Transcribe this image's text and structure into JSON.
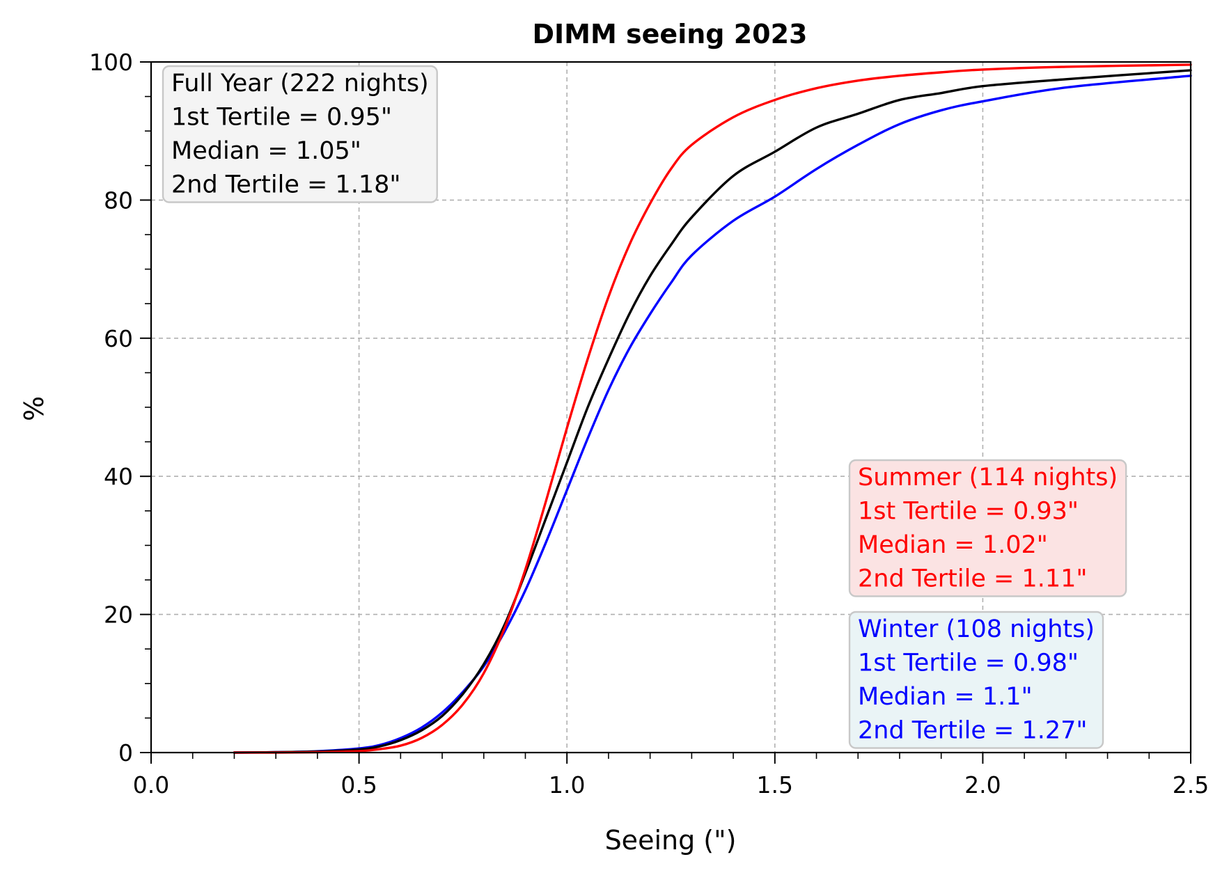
{
  "chart_data": {
    "type": "line",
    "title": "DIMM seeing 2023",
    "xlabel": "Seeing (\")",
    "ylabel": "%",
    "xlim": [
      0.0,
      2.5
    ],
    "ylim": [
      0,
      100
    ],
    "xticks": [
      "0.0",
      "0.5",
      "1.0",
      "1.5",
      "2.0",
      "2.5"
    ],
    "yticks": [
      "0",
      "20",
      "40",
      "60",
      "80",
      "100"
    ],
    "grid": true,
    "series": [
      {
        "color": "#0000ff",
        "x": [
          0.2,
          0.3,
          0.4,
          0.5,
          0.55,
          0.6,
          0.65,
          0.7,
          0.75,
          0.8,
          0.85,
          0.9,
          0.95,
          1.0,
          1.05,
          1.1,
          1.15,
          1.2,
          1.25,
          1.3,
          1.4,
          1.5,
          1.6,
          1.7,
          1.8,
          1.9,
          2.0,
          2.2,
          2.5
        ],
        "y": [
          0.0,
          0.05,
          0.2,
          0.6,
          1.1,
          2.1,
          3.6,
          5.8,
          8.8,
          12.5,
          17.5,
          23.5,
          30.5,
          38.0,
          45.5,
          52.5,
          58.5,
          63.5,
          68.0,
          72.0,
          77.0,
          80.5,
          84.5,
          88.0,
          91.0,
          93.0,
          94.3,
          96.3,
          98.0
        ]
      },
      {
        "color": "#000000",
        "x": [
          0.2,
          0.3,
          0.4,
          0.5,
          0.55,
          0.6,
          0.65,
          0.7,
          0.75,
          0.8,
          0.85,
          0.9,
          0.95,
          1.0,
          1.05,
          1.1,
          1.15,
          1.2,
          1.25,
          1.3,
          1.4,
          1.5,
          1.6,
          1.7,
          1.8,
          1.9,
          2.0,
          2.2,
          2.5
        ],
        "y": [
          0.0,
          0.05,
          0.15,
          0.45,
          0.9,
          1.8,
          3.2,
          5.3,
          8.5,
          12.8,
          18.5,
          26.0,
          34.0,
          42.0,
          50.0,
          57.0,
          63.5,
          69.0,
          73.5,
          77.5,
          83.5,
          87.0,
          90.5,
          92.5,
          94.5,
          95.5,
          96.5,
          97.5,
          98.8
        ]
      },
      {
        "color": "#ff0000",
        "x": [
          0.2,
          0.3,
          0.4,
          0.5,
          0.55,
          0.6,
          0.65,
          0.7,
          0.75,
          0.8,
          0.85,
          0.9,
          0.95,
          1.0,
          1.05,
          1.1,
          1.15,
          1.2,
          1.25,
          1.3,
          1.4,
          1.5,
          1.6,
          1.7,
          1.8,
          1.9,
          2.0,
          2.2,
          2.5
        ],
        "y": [
          0.0,
          0.0,
          0.05,
          0.2,
          0.5,
          1.0,
          2.1,
          4.0,
          7.0,
          11.5,
          18.0,
          26.5,
          36.5,
          47.0,
          57.0,
          66.0,
          73.5,
          79.5,
          84.5,
          88.0,
          92.0,
          94.5,
          96.2,
          97.3,
          98.0,
          98.5,
          98.9,
          99.3,
          99.6
        ]
      }
    ],
    "annotations": [
      {
        "color": "#000000",
        "box_fill": "#f4f4f4",
        "position": "top-left",
        "lines": [
          "Full Year (222 nights)",
          "1st Tertile = 0.95\"",
          "Median = 1.05\"",
          "2nd Tertile = 1.18\""
        ]
      },
      {
        "color": "#ff0000",
        "box_fill": "#fbe3e3",
        "position": "lower-right",
        "lines": [
          "Summer (114 nights)",
          "1st Tertile = 0.93\"",
          "Median = 1.02\"",
          "2nd Tertile = 1.11\""
        ]
      },
      {
        "color": "#0000ff",
        "box_fill": "#eaf4f6",
        "position": "bottom-right",
        "lines": [
          "Winter (108 nights)",
          "1st Tertile = 0.98\"",
          "Median = 1.1\"",
          "2nd Tertile = 1.27\""
        ]
      }
    ]
  }
}
